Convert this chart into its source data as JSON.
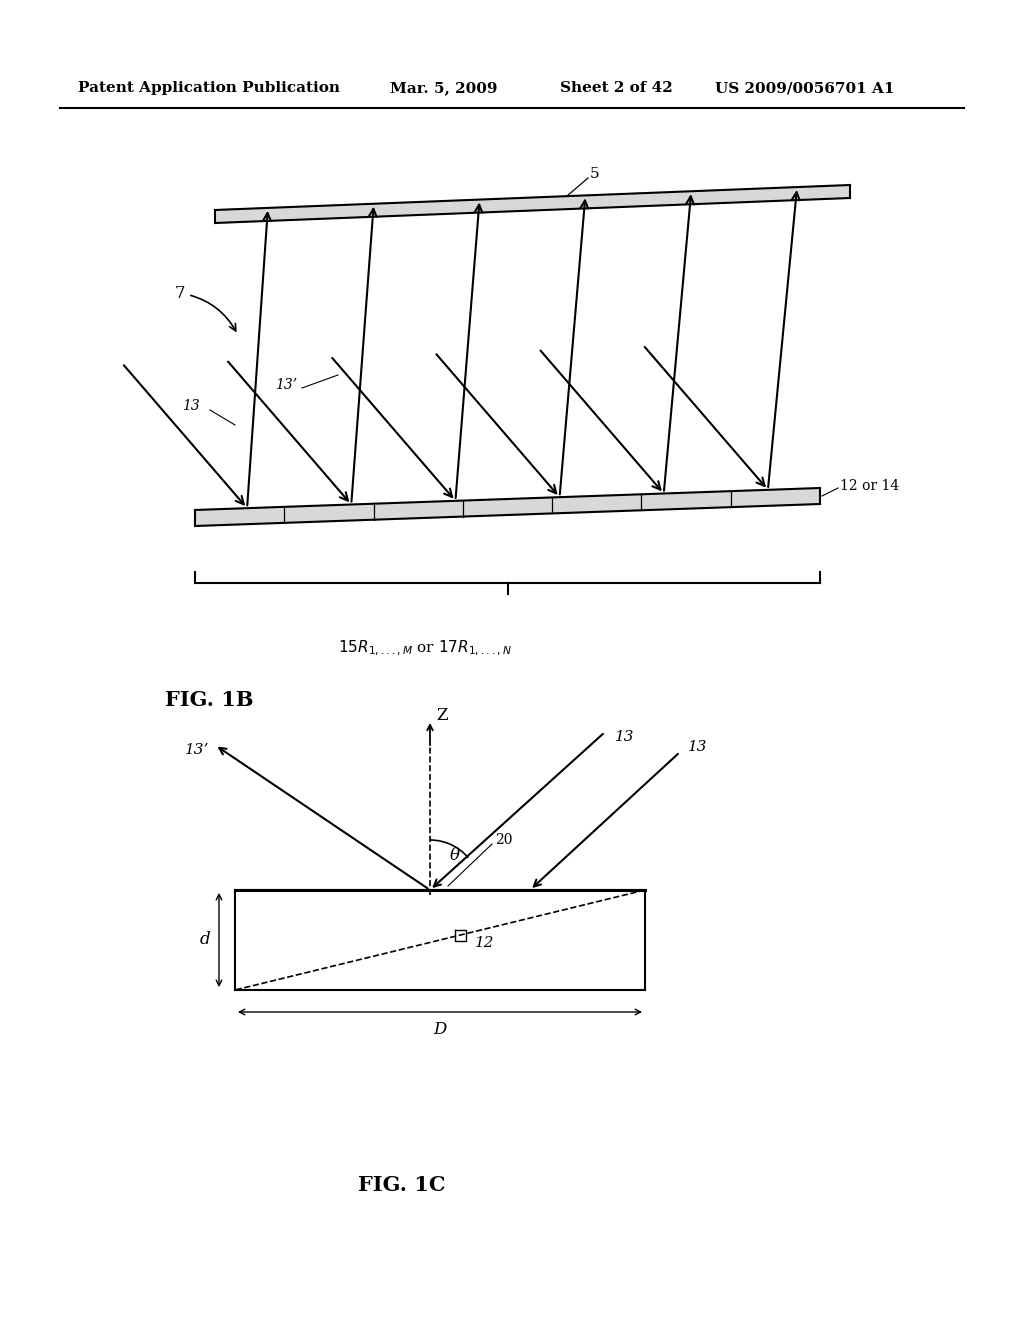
{
  "bg_color": "#ffffff",
  "header_text": "Patent Application Publication",
  "header_date": "Mar. 5, 2009",
  "header_sheet": "Sheet 2 of 42",
  "header_patent": "US 2009/0056701 A1",
  "header_fontsize": 11,
  "fig1b_label": "FIG. 1B",
  "fig1c_label": "FIG. 1C",
  "label_5": "5",
  "label_7": "7",
  "label_12or14": "12 or 14",
  "label_13": "13",
  "label_13prime": "13’",
  "label_12": "12",
  "label_20": "20",
  "label_d": "d",
  "label_D": "D",
  "label_theta": "θ",
  "label_Z": "Z"
}
